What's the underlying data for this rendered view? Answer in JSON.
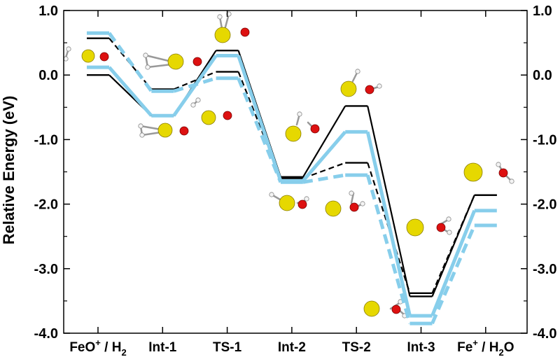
{
  "chart_data": {
    "type": "line",
    "ylabel": "Relative Energy (eV)",
    "ylim": [
      -4.0,
      1.0
    ],
    "yticks": [
      -4.0,
      -3.0,
      -2.0,
      -1.0,
      0.0,
      1.0
    ],
    "ytick_labels": [
      "-4.0",
      "-3.0",
      "-2.0",
      "-1.0",
      "0.0",
      "1.0"
    ],
    "categories": [
      {
        "main": "FeO",
        "sup": "+",
        "mid": " / H",
        "sub": "2",
        "end": ""
      },
      {
        "main": "Int-1",
        "sup": "",
        "mid": "",
        "sub": "",
        "end": ""
      },
      {
        "main": "TS-1",
        "sup": "",
        "mid": "",
        "sub": "",
        "end": ""
      },
      {
        "main": "Int-2",
        "sup": "",
        "mid": "",
        "sub": "",
        "end": ""
      },
      {
        "main": "TS-2",
        "sup": "",
        "mid": "",
        "sub": "",
        "end": ""
      },
      {
        "main": "Int-3",
        "sup": "",
        "mid": "",
        "sub": "",
        "end": ""
      },
      {
        "main": "Fe",
        "sup": "+",
        "mid": " / H",
        "sub": "2",
        "end": "O"
      }
    ],
    "series": [
      {
        "style": "black-solid",
        "color": "#000000",
        "dash": false,
        "values": [
          0.0,
          -0.63,
          0.38,
          -1.58,
          -0.48,
          -3.43,
          -1.86
        ]
      },
      {
        "style": "black-dashed",
        "color": "#000000",
        "dash": true,
        "values": [
          0.57,
          -0.22,
          0.05,
          -1.6,
          -1.36,
          -3.38,
          -1.86
        ]
      },
      {
        "style": "blue-solid",
        "color": "#87CEEB",
        "dash": false,
        "values": [
          0.12,
          -0.63,
          0.3,
          -1.64,
          -0.88,
          -3.73,
          -2.1
        ]
      },
      {
        "style": "blue-dashed",
        "color": "#87CEEB",
        "dash": true,
        "values": [
          0.65,
          -0.25,
          -0.05,
          -1.66,
          -1.55,
          -3.85,
          -2.33
        ]
      }
    ],
    "molecule_icons": [
      "feo-h2-reactant-molecule",
      "int1-upper-molecule",
      "int1-lower-molecule",
      "ts1-upper-molecule",
      "ts1-lower-molecule",
      "int2-upper-molecule",
      "int2-lower-molecule",
      "ts2-upper-molecule",
      "ts2-lower-molecule",
      "int3-molecule",
      "fe-h2o-product-molecules"
    ],
    "grid": false,
    "legend": "none"
  }
}
